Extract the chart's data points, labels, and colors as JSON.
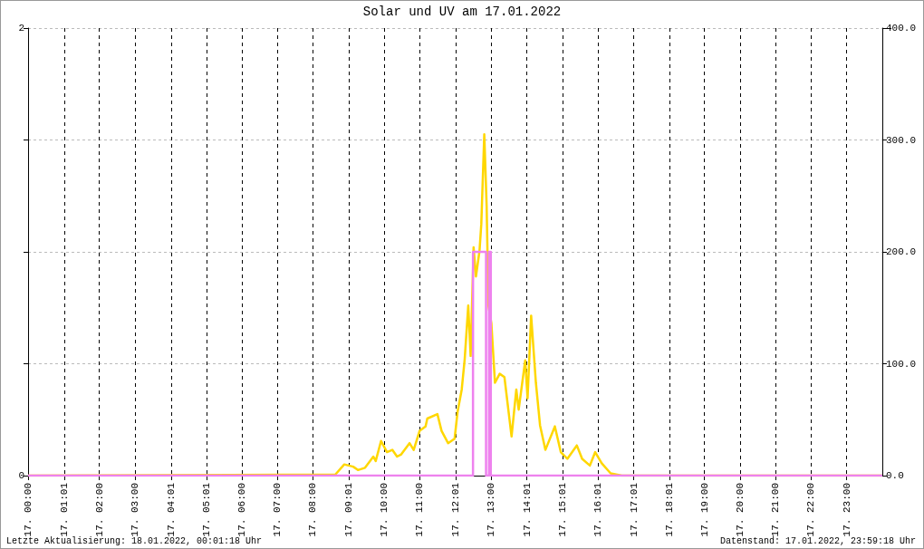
{
  "chart_data": {
    "type": "line",
    "title": "Solar und UV am 17.01.2022",
    "xlim": [
      "2022-01-17T00:00",
      "2022-01-18T00:00"
    ],
    "xticks": [
      {
        "value": "2022-01-17T00:00",
        "label": "17. 00:00"
      },
      {
        "value": "2022-01-17T01:01",
        "label": "17. 01:01"
      },
      {
        "value": "2022-01-17T02:00",
        "label": "17. 02:00"
      },
      {
        "value": "2022-01-17T03:00",
        "label": "17. 03:00"
      },
      {
        "value": "2022-01-17T04:01",
        "label": "17. 04:01"
      },
      {
        "value": "2022-01-17T05:01",
        "label": "17. 05:01"
      },
      {
        "value": "2022-01-17T06:00",
        "label": "17. 06:00"
      },
      {
        "value": "2022-01-17T07:00",
        "label": "17. 07:00"
      },
      {
        "value": "2022-01-17T08:00",
        "label": "17. 08:00"
      },
      {
        "value": "2022-01-17T09:01",
        "label": "17. 09:01"
      },
      {
        "value": "2022-01-17T10:00",
        "label": "17. 10:00"
      },
      {
        "value": "2022-01-17T11:00",
        "label": "17. 11:00"
      },
      {
        "value": "2022-01-17T12:01",
        "label": "17. 12:01"
      },
      {
        "value": "2022-01-17T13:00",
        "label": "17. 13:00"
      },
      {
        "value": "2022-01-17T14:01",
        "label": "17. 14:01"
      },
      {
        "value": "2022-01-17T15:01",
        "label": "17. 15:01"
      },
      {
        "value": "2022-01-17T16:01",
        "label": "17. 16:01"
      },
      {
        "value": "2022-01-17T17:01",
        "label": "17. 17:01"
      },
      {
        "value": "2022-01-17T18:01",
        "label": "17. 18:01"
      },
      {
        "value": "2022-01-17T19:00",
        "label": "17. 19:00"
      },
      {
        "value": "2022-01-17T20:00",
        "label": "17. 20:00"
      },
      {
        "value": "2022-01-17T21:00",
        "label": "17. 21:00"
      },
      {
        "value": "2022-01-17T22:00",
        "label": "17. 22:00"
      },
      {
        "value": "2022-01-17T23:00",
        "label": "17. 23:00"
      }
    ],
    "ylim": [
      0,
      2
    ],
    "yticks": [
      0,
      {
        "value": 0.5,
        "label": null
      },
      {
        "value": 1,
        "label": null
      },
      {
        "value": 1.5,
        "label": null
      },
      2
    ],
    "y2lim": [
      0,
      400
    ],
    "y2ticks": [
      {
        "value": 0,
        "label": "0.0"
      },
      {
        "value": 100,
        "label": "100.0"
      },
      {
        "value": 200,
        "label": "200.0"
      },
      {
        "value": 300,
        "label": "300.0"
      },
      {
        "value": 400,
        "label": "400.0"
      }
    ],
    "grid": true,
    "marker": "none",
    "series": [
      {
        "color": "#ffd700",
        "axis": "y2",
        "x": [
          "2022-01-17T00:00",
          "2022-01-17T08:38",
          "2022-01-17T08:53",
          "2022-01-17T09:08",
          "2022-01-17T09:16",
          "2022-01-17T09:28",
          "2022-01-17T09:42",
          "2022-01-17T09:46",
          "2022-01-17T09:55",
          "2022-01-17T10:05",
          "2022-01-17T10:14",
          "2022-01-17T10:22",
          "2022-01-17T10:29",
          "2022-01-17T10:43",
          "2022-01-17T10:50",
          "2022-01-17T11:00",
          "2022-01-17T11:10",
          "2022-01-17T11:13",
          "2022-01-17T11:30",
          "2022-01-17T11:37",
          "2022-01-17T11:48",
          "2022-01-17T11:59",
          "2022-01-17T12:04",
          "2022-01-17T12:11",
          "2022-01-17T12:16",
          "2022-01-17T12:22",
          "2022-01-17T12:26",
          "2022-01-17T12:31",
          "2022-01-17T12:35",
          "2022-01-17T12:41",
          "2022-01-17T12:44",
          "2022-01-17T12:49",
          "2022-01-17T12:53",
          "2022-01-17T12:56",
          "2022-01-17T13:01",
          "2022-01-17T13:07",
          "2022-01-17T13:15",
          "2022-01-17T13:23",
          "2022-01-17T13:35",
          "2022-01-17T13:43",
          "2022-01-17T13:47",
          "2022-01-17T13:58",
          "2022-01-17T14:02",
          "2022-01-17T14:08",
          "2022-01-17T14:16",
          "2022-01-17T14:23",
          "2022-01-17T14:32",
          "2022-01-17T14:48",
          "2022-01-17T14:58",
          "2022-01-17T15:09",
          "2022-01-17T15:25",
          "2022-01-17T15:34",
          "2022-01-17T15:47",
          "2022-01-17T15:56",
          "2022-01-17T16:07",
          "2022-01-17T16:22",
          "2022-01-17T16:41",
          "2022-01-18T00:00"
        ],
        "values": [
          0,
          1,
          10,
          8,
          5,
          7,
          17,
          13,
          31,
          21,
          23,
          17,
          19,
          29,
          23,
          40,
          44,
          51,
          55,
          40,
          29,
          33,
          57,
          77,
          104,
          152,
          107,
          204,
          178,
          201,
          225,
          305,
          241,
          152,
          136,
          83,
          91,
          88,
          35,
          77,
          59,
          103,
          69,
          143,
          83,
          45,
          23,
          44,
          21,
          15,
          27,
          15,
          9,
          21,
          11,
          2,
          0,
          0
        ]
      },
      {
        "color": "#ee82ee",
        "type": "step",
        "x": [
          "2022-01-17T00:00",
          "2022-01-17T12:30",
          "2022-01-17T12:52",
          "2022-01-17T12:57",
          "2022-01-17T13:00",
          "2022-01-18T00:00"
        ],
        "values": [
          0,
          1,
          0,
          1,
          0,
          0
        ]
      }
    ],
    "annotations": [
      "Letzte Aktualisierung: 18.01.2022, 00:01:18 Uhr",
      "Datenstand: 17.01.2022, 23:59:18 Uhr"
    ]
  }
}
